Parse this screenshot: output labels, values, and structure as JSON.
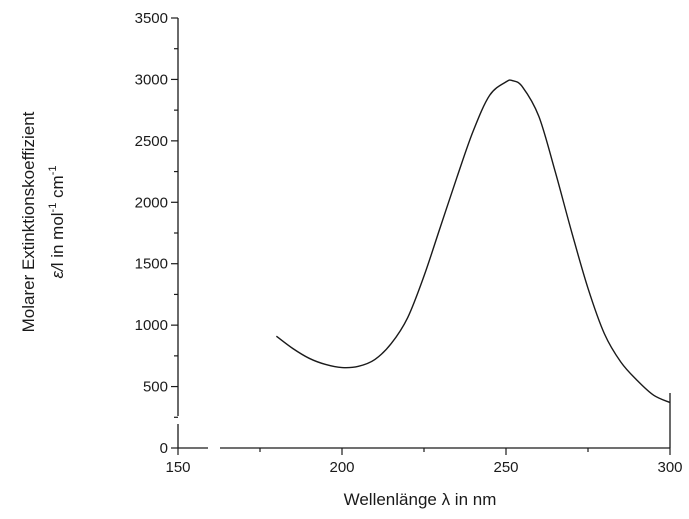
{
  "chart_data": {
    "type": "line",
    "xlabel": "Wellenlänge λ in nm",
    "ylabel_line1": "Molarer Extinktionskoeffizient",
    "ylabel_line2_symbol": "ε/",
    "ylabel_line2_text": "l in mol",
    "ylabel_line2_sup1": "-1",
    "ylabel_line2_mid": " cm",
    "ylabel_line2_sup2": "-1",
    "xlim": [
      150,
      300
    ],
    "ylim": [
      0,
      3500
    ],
    "x_ticks": [
      150,
      200,
      250,
      300
    ],
    "y_ticks": [
      0,
      500,
      1000,
      1500,
      2000,
      2500,
      3000,
      3500
    ],
    "x_tick_labels": [
      "150",
      "200",
      "250",
      "300"
    ],
    "y_tick_labels": [
      "0",
      "500",
      "1000",
      "1500",
      "2000",
      "2500",
      "3000",
      "3500"
    ],
    "grid": false,
    "axis_break": true,
    "series": [
      {
        "x": [
          180,
          185,
          190,
          195,
          200,
          205,
          210,
          215,
          220,
          225,
          230,
          235,
          240,
          245,
          250,
          252,
          255,
          260,
          265,
          270,
          275,
          280,
          285,
          290,
          295,
          300
        ],
        "y": [
          910,
          810,
          730,
          680,
          655,
          665,
          720,
          850,
          1060,
          1400,
          1800,
          2200,
          2580,
          2870,
          2980,
          2990,
          2940,
          2700,
          2250,
          1760,
          1300,
          930,
          700,
          550,
          430,
          370
        ]
      }
    ]
  }
}
